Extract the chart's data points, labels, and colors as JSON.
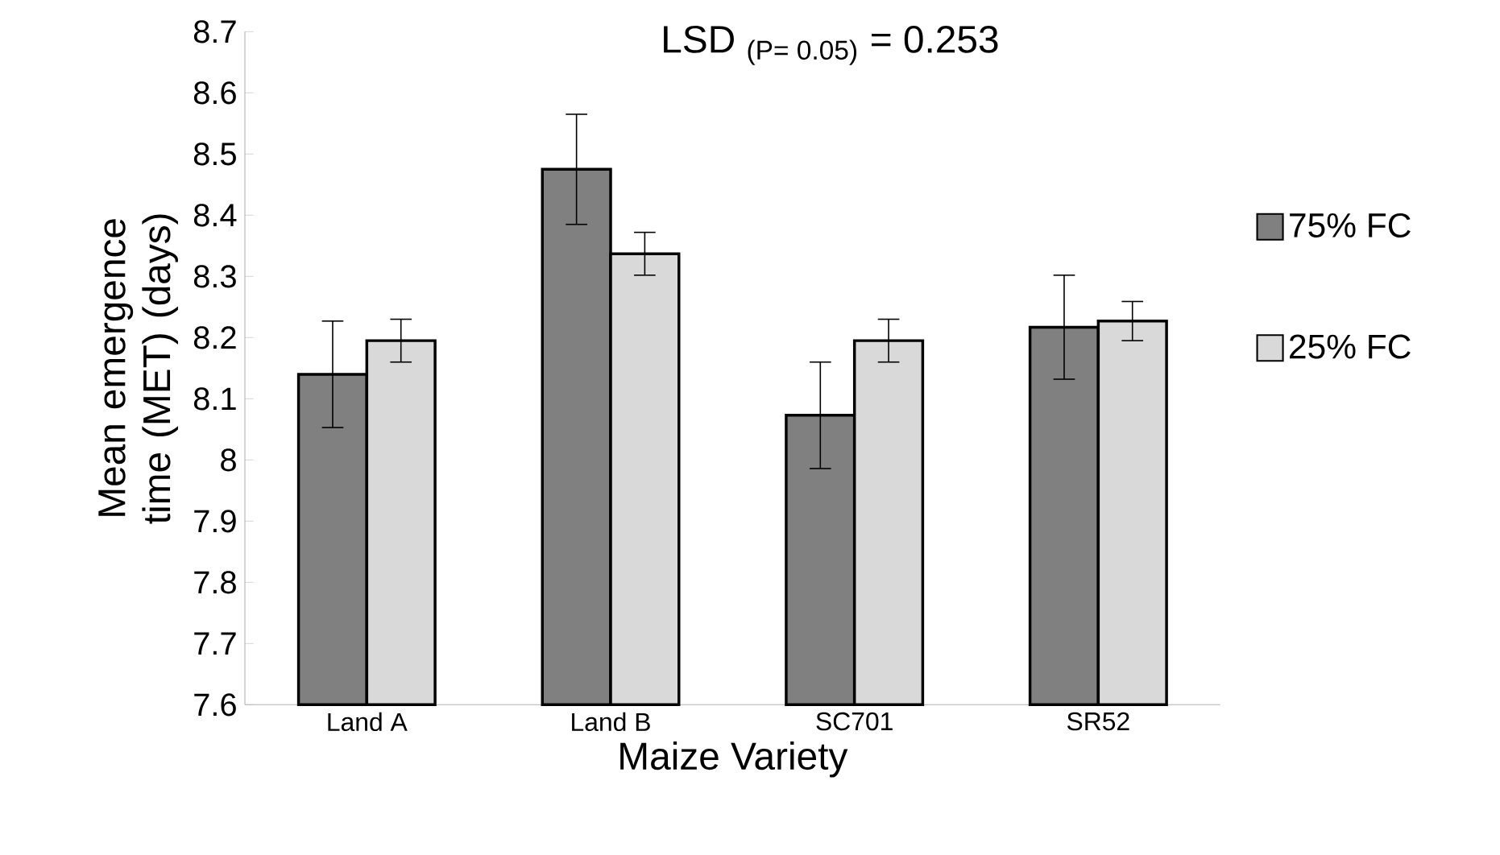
{
  "chart_data": {
    "type": "bar",
    "title": "LSD $_{(P= 0.05)}$ = 0.253",
    "xlabel": "Maize Variety",
    "ylabel": "Mean emergence time (MET) (days)",
    "categories": [
      "Land A",
      "Land B",
      "SC701",
      "SR52"
    ],
    "series": [
      {
        "name": "75% FC",
        "color": "#808080",
        "values": [
          8.14,
          8.475,
          8.073,
          8.217
        ],
        "errors": [
          0.087,
          0.09,
          0.087,
          0.085
        ]
      },
      {
        "name": "25% FC",
        "color": "#d9d9d9",
        "values": [
          8.195,
          8.337,
          8.195,
          8.227
        ],
        "errors": [
          0.035,
          0.035,
          0.035,
          0.032
        ]
      }
    ],
    "ylim": [
      7.6,
      8.7
    ],
    "yticks": [
      7.6,
      7.7,
      7.8,
      7.9,
      8,
      8.1,
      8.2,
      8.3,
      8.4,
      8.5,
      8.6,
      8.7
    ],
    "grid": false,
    "legend": "right"
  }
}
